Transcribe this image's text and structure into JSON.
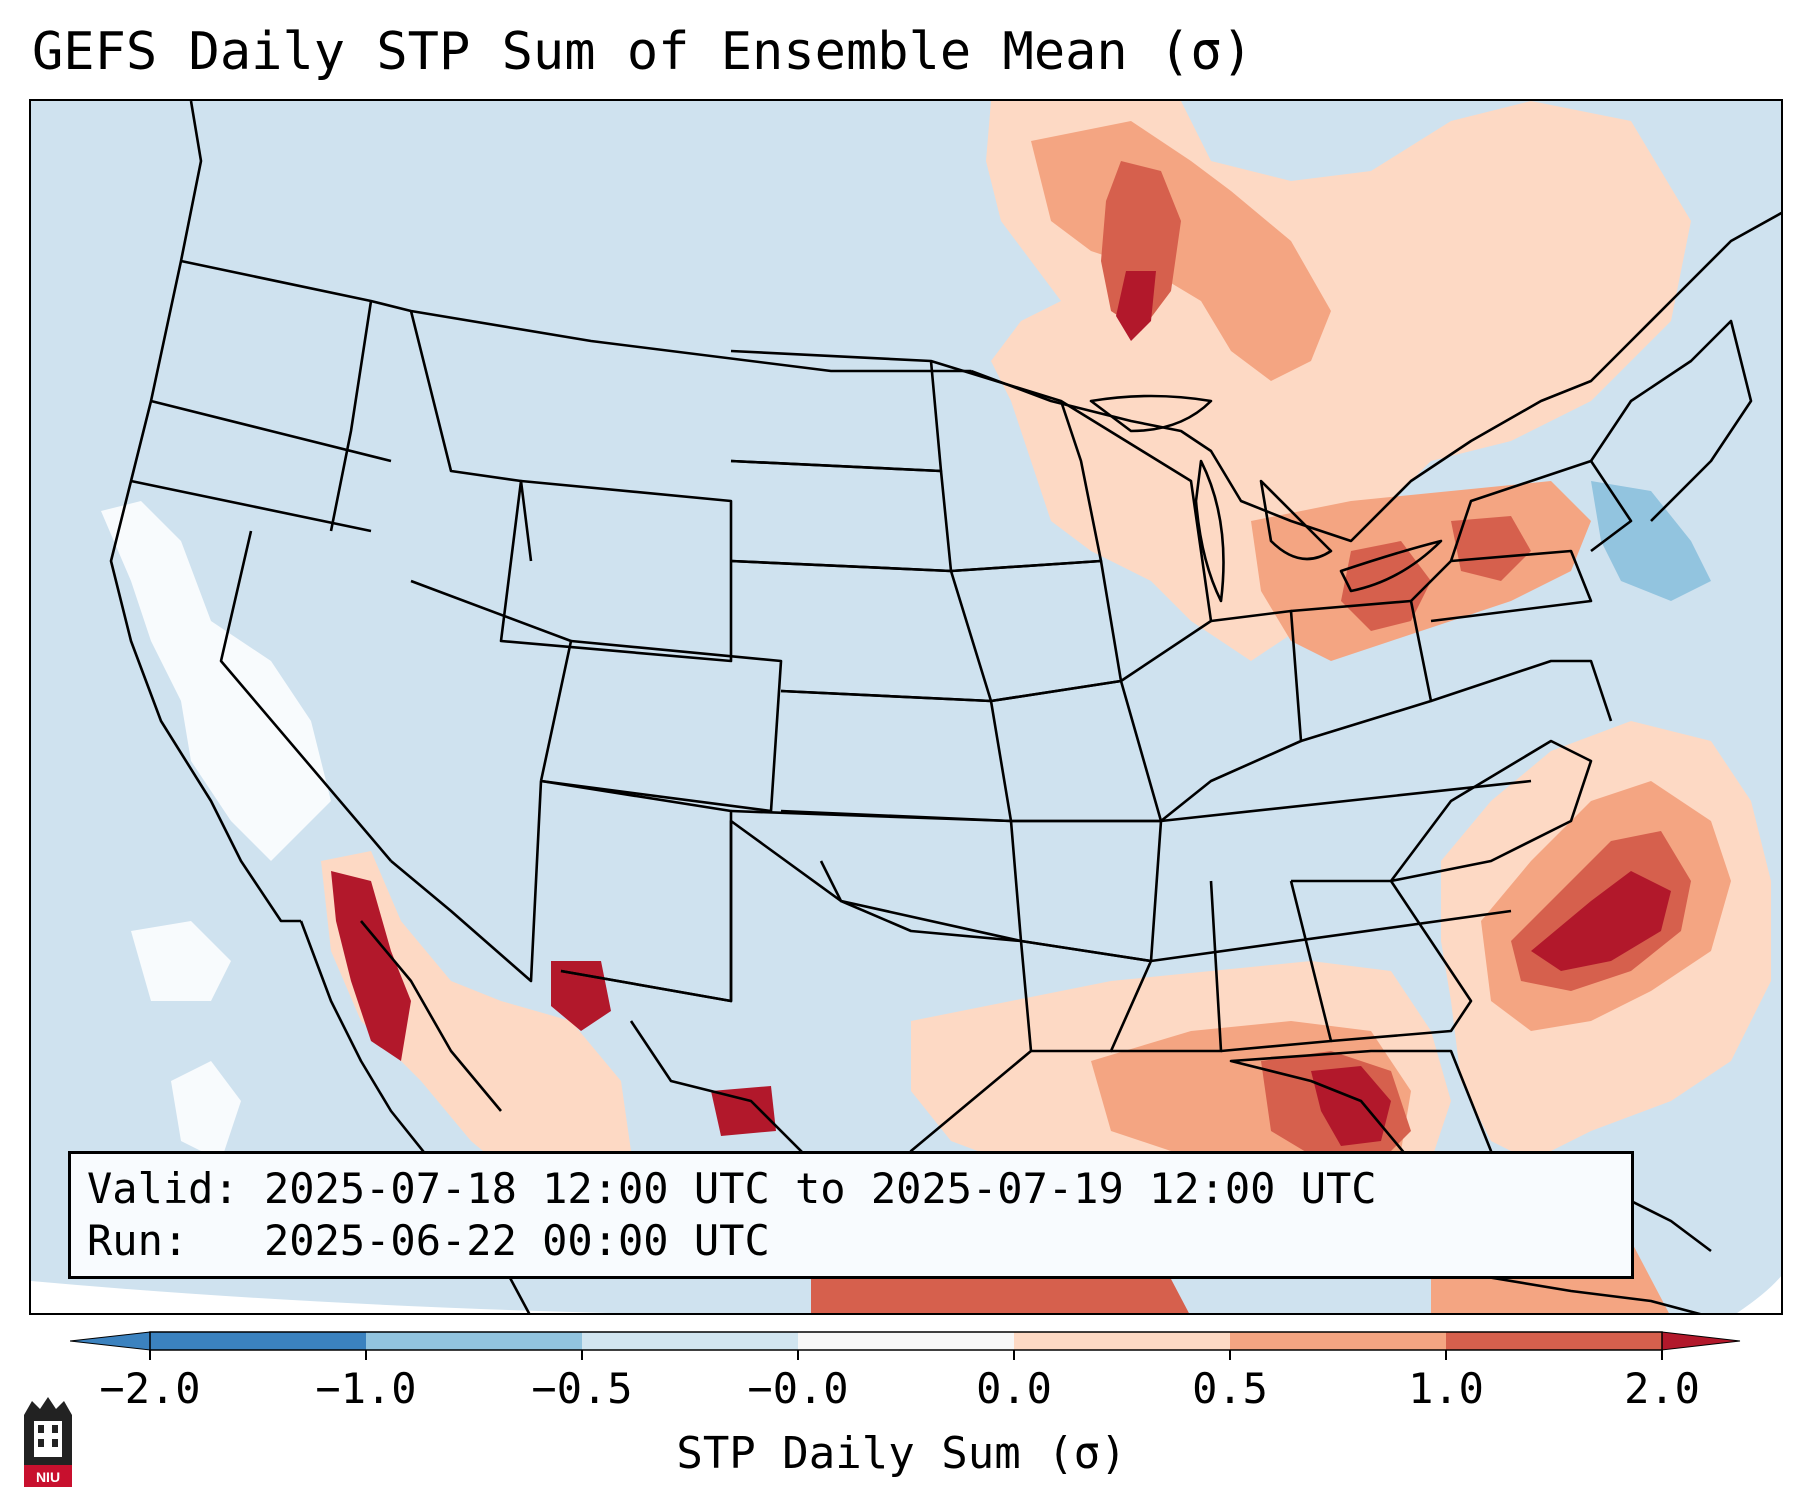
{
  "title": "GEFS Daily STP Sum of Ensemble Mean (σ)",
  "info": {
    "valid_line": "Valid: 2025-07-18 12:00 UTC to 2025-07-19 12:00 UTC",
    "run_line": "Run:   2025-06-22 00:00 UTC"
  },
  "colorbar": {
    "label": "STP Daily Sum (σ)",
    "ticks": [
      "−2.0",
      "−1.0",
      "−0.5",
      "−0.0",
      "0.0",
      "0.5",
      "1.0",
      "2.0"
    ],
    "colors": [
      "#3b82bf",
      "#92c4df",
      "#d1e5f0",
      "#f7f7f7",
      "#fdd9c4",
      "#f4a582",
      "#d6604d",
      "#b2182b"
    ],
    "extend": "both"
  },
  "map_colors": {
    "background": "#cfe2ef",
    "neutral": "#ffffff",
    "light_positive": "#fdd9c4",
    "medium_positive": "#f4a582",
    "strong_positive": "#d6604d",
    "extreme_positive": "#b2182b",
    "light_negative": "#92c4df"
  },
  "logo": {
    "text": "NIU"
  }
}
